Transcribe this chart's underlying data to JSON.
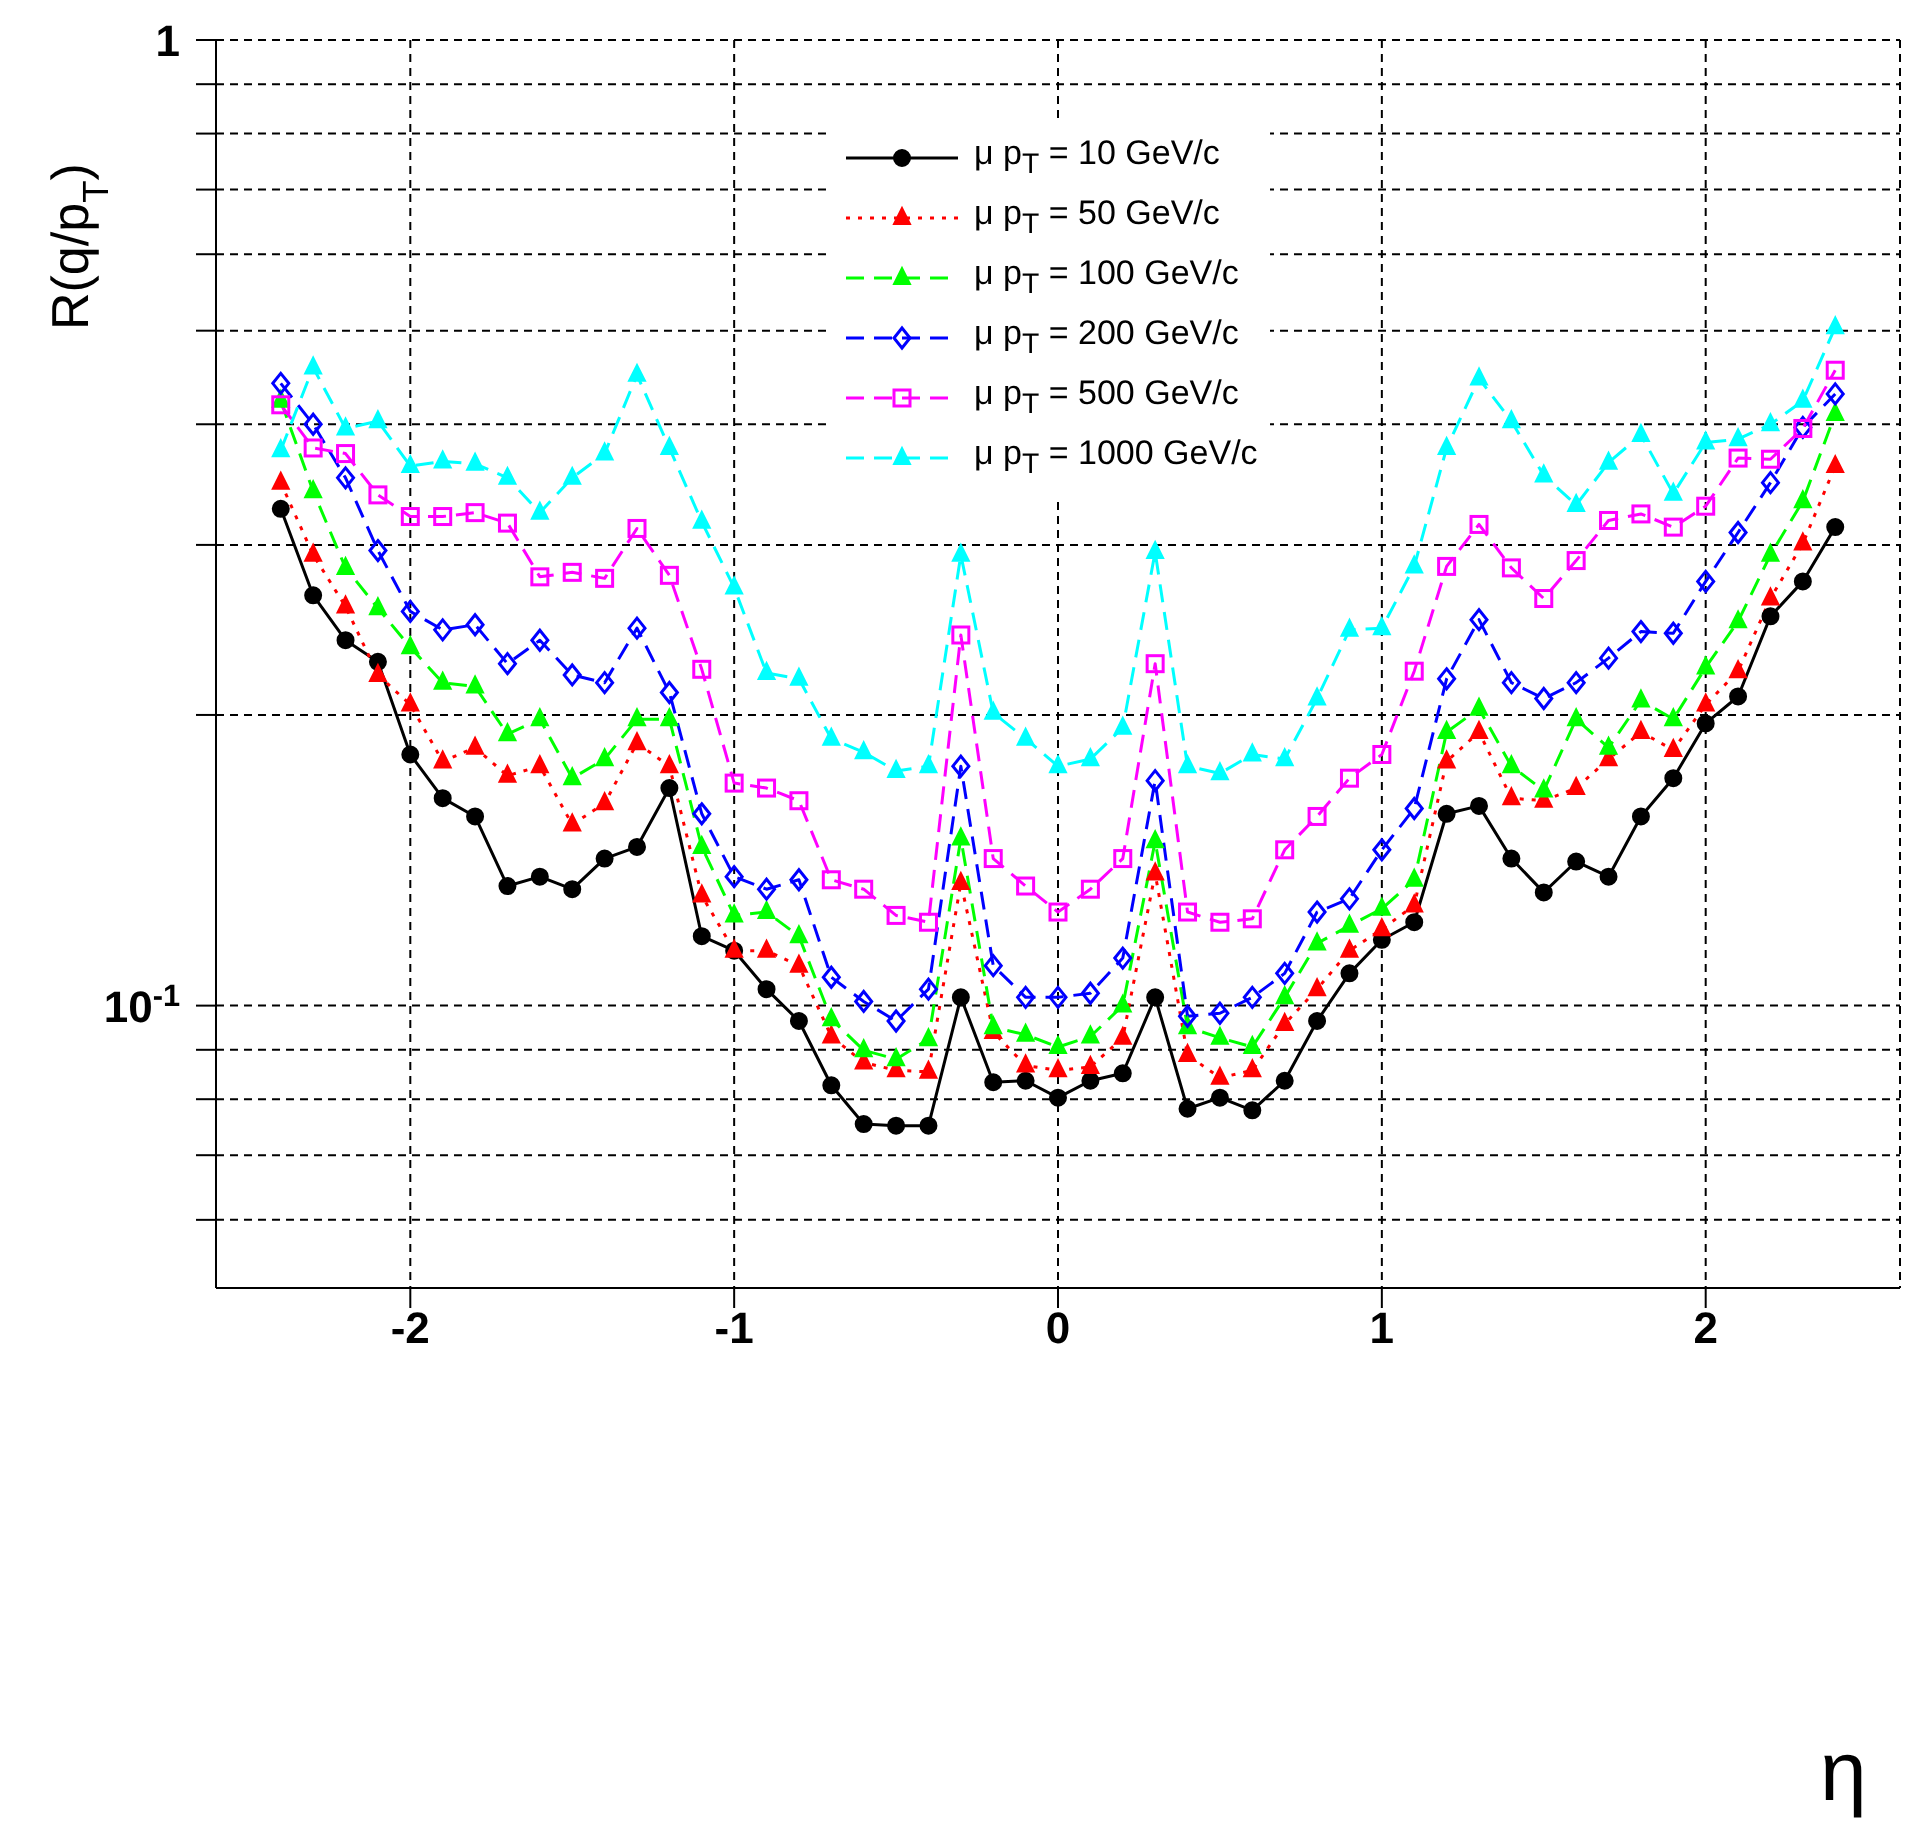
{
  "chart_data": {
    "type": "line",
    "xlabel": "η",
    "ylabel": "R(q/p$_{T}$)",
    "log": "y",
    "grid": true,
    "legend": "top",
    "xlim": [
      -2.6,
      2.6
    ],
    "xticks": [
      -2,
      -1,
      0,
      1,
      2
    ],
    "ylim": [
      0.051,
      1
    ],
    "yticks": [
      {
        "value": 0.06,
        "label": null
      },
      {
        "value": 0.07,
        "label": null
      },
      {
        "value": 0.08,
        "label": null
      },
      {
        "value": 0.09,
        "label": null
      },
      {
        "value": 0.1,
        "label": "10$^{-1}$"
      },
      {
        "value": 0.2,
        "label": null
      },
      {
        "value": 0.3,
        "label": null
      },
      {
        "value": 0.4,
        "label": null
      },
      {
        "value": 0.5,
        "label": null
      },
      {
        "value": 0.6,
        "label": null
      },
      {
        "value": 0.7,
        "label": null
      },
      {
        "value": 0.8,
        "label": null
      },
      {
        "value": 0.9,
        "label": null
      },
      {
        "value": 1,
        "label": "1"
      }
    ],
    "x": [
      -2.4,
      -2.3,
      -2.2,
      -2.1,
      -2.0,
      -1.9,
      -1.8,
      -1.7,
      -1.6,
      -1.5,
      -1.4,
      -1.3,
      -1.2,
      -1.1,
      -1.0,
      -0.9,
      -0.8,
      -0.7,
      -0.6,
      -0.5,
      -0.4,
      -0.3,
      -0.2,
      -0.1,
      0,
      0.1,
      0.2,
      0.3,
      0.4,
      0.5,
      0.6,
      0.7,
      0.8,
      0.9,
      1.0,
      1.1,
      1.2,
      1.3,
      1.4,
      1.5,
      1.6,
      1.7,
      1.8,
      1.9,
      2.0,
      2.1,
      2.2,
      2.3,
      2.4
    ],
    "series": [
      {
        "name": "μ p$_{T}$ = 10 GeV/c",
        "color": "#000000",
        "marker": "circle",
        "line_style": "solid",
        "values": [
          0.327,
          0.266,
          0.239,
          0.227,
          0.182,
          0.164,
          0.157,
          0.133,
          0.136,
          0.132,
          0.142,
          0.146,
          0.168,
          0.118,
          0.114,
          0.104,
          0.0964,
          0.0827,
          0.0754,
          0.0751,
          0.0751,
          0.102,
          0.0833,
          0.0836,
          0.0803,
          0.0836,
          0.0851,
          0.102,
          0.0782,
          0.0803,
          0.0779,
          0.0836,
          0.0964,
          0.108,
          0.117,
          0.122,
          0.158,
          0.161,
          0.142,
          0.131,
          0.141,
          0.136,
          0.157,
          0.172,
          0.196,
          0.209,
          0.253,
          0.275,
          0.313
        ]
      },
      {
        "name": "μ p$_{T}$ = 50 GeV/c",
        "color": "#ff0000",
        "marker": "triangle",
        "line_style": "dotted",
        "values": [
          0.348,
          0.293,
          0.259,
          0.22,
          0.205,
          0.179,
          0.185,
          0.173,
          0.177,
          0.154,
          0.162,
          0.187,
          0.177,
          0.13,
          0.114,
          0.114,
          0.11,
          0.0929,
          0.0873,
          0.0857,
          0.0854,
          0.134,
          0.0939,
          0.0867,
          0.0857,
          0.0864,
          0.0926,
          0.137,
          0.0889,
          0.0842,
          0.0857,
          0.0957,
          0.104,
          0.114,
          0.12,
          0.127,
          0.179,
          0.192,
          0.164,
          0.163,
          0.168,
          0.18,
          0.192,
          0.184,
          0.205,
          0.222,
          0.264,
          0.301,
          0.362
        ]
      },
      {
        "name": "μ p$_{T}$ = 100 GeV/c",
        "color": "#00ff00",
        "marker": "triangle",
        "line_style": "dashed",
        "values": [
          0.423,
          0.341,
          0.284,
          0.258,
          0.235,
          0.216,
          0.214,
          0.191,
          0.198,
          0.172,
          0.18,
          0.198,
          0.198,
          0.146,
          0.124,
          0.125,
          0.118,
          0.0968,
          0.0899,
          0.088,
          0.0923,
          0.149,
          0.095,
          0.0933,
          0.0906,
          0.0929,
          0.1,
          0.148,
          0.095,
          0.0926,
          0.0906,
          0.102,
          0.116,
          0.121,
          0.126,
          0.135,
          0.192,
          0.203,
          0.177,
          0.167,
          0.198,
          0.185,
          0.207,
          0.198,
          0.224,
          0.25,
          0.293,
          0.333,
          0.41
        ]
      },
      {
        "name": "μ p$_{T}$ = 200 GeV/c",
        "color": "#0000ff",
        "marker": "diamond",
        "line_style": "dashed",
        "values": [
          0.441,
          0.4,
          0.352,
          0.296,
          0.256,
          0.245,
          0.248,
          0.226,
          0.239,
          0.22,
          0.216,
          0.246,
          0.211,
          0.158,
          0.136,
          0.132,
          0.135,
          0.107,
          0.101,
          0.0964,
          0.104,
          0.177,
          0.11,
          0.102,
          0.102,
          0.103,
          0.112,
          0.171,
          0.0975,
          0.0982,
          0.102,
          0.108,
          0.125,
          0.129,
          0.145,
          0.16,
          0.218,
          0.251,
          0.216,
          0.208,
          0.216,
          0.229,
          0.244,
          0.243,
          0.275,
          0.309,
          0.348,
          0.397,
          0.43
        ]
      },
      {
        "name": "μ p$_{T}$ = 500 GeV/c",
        "color": "#ff00ff",
        "marker": "square",
        "line_style": "dashed",
        "values": [
          0.419,
          0.378,
          0.373,
          0.338,
          0.321,
          0.321,
          0.324,
          0.316,
          0.278,
          0.281,
          0.277,
          0.312,
          0.279,
          0.223,
          0.17,
          0.168,
          0.163,
          0.135,
          0.132,
          0.124,
          0.122,
          0.242,
          0.142,
          0.133,
          0.125,
          0.132,
          0.142,
          0.226,
          0.125,
          0.122,
          0.123,
          0.145,
          0.157,
          0.172,
          0.182,
          0.222,
          0.285,
          0.315,
          0.284,
          0.264,
          0.289,
          0.318,
          0.323,
          0.313,
          0.329,
          0.369,
          0.368,
          0.396,
          0.455
        ]
      },
      {
        "name": "μ p$_{T}$ = 1000 GeV/c",
        "color": "#00ffff",
        "marker": "triangle",
        "line_style": "dashed",
        "values": [
          0.376,
          0.458,
          0.396,
          0.403,
          0.362,
          0.366,
          0.364,
          0.352,
          0.324,
          0.352,
          0.373,
          0.45,
          0.378,
          0.317,
          0.271,
          0.221,
          0.218,
          0.189,
          0.183,
          0.175,
          0.177,
          0.293,
          0.201,
          0.189,
          0.177,
          0.18,
          0.194,
          0.295,
          0.177,
          0.174,
          0.182,
          0.18,
          0.208,
          0.245,
          0.246,
          0.285,
          0.378,
          0.446,
          0.403,
          0.354,
          0.33,
          0.365,
          0.39,
          0.339,
          0.383,
          0.386,
          0.4,
          0.423,
          0.504
        ]
      }
    ]
  }
}
